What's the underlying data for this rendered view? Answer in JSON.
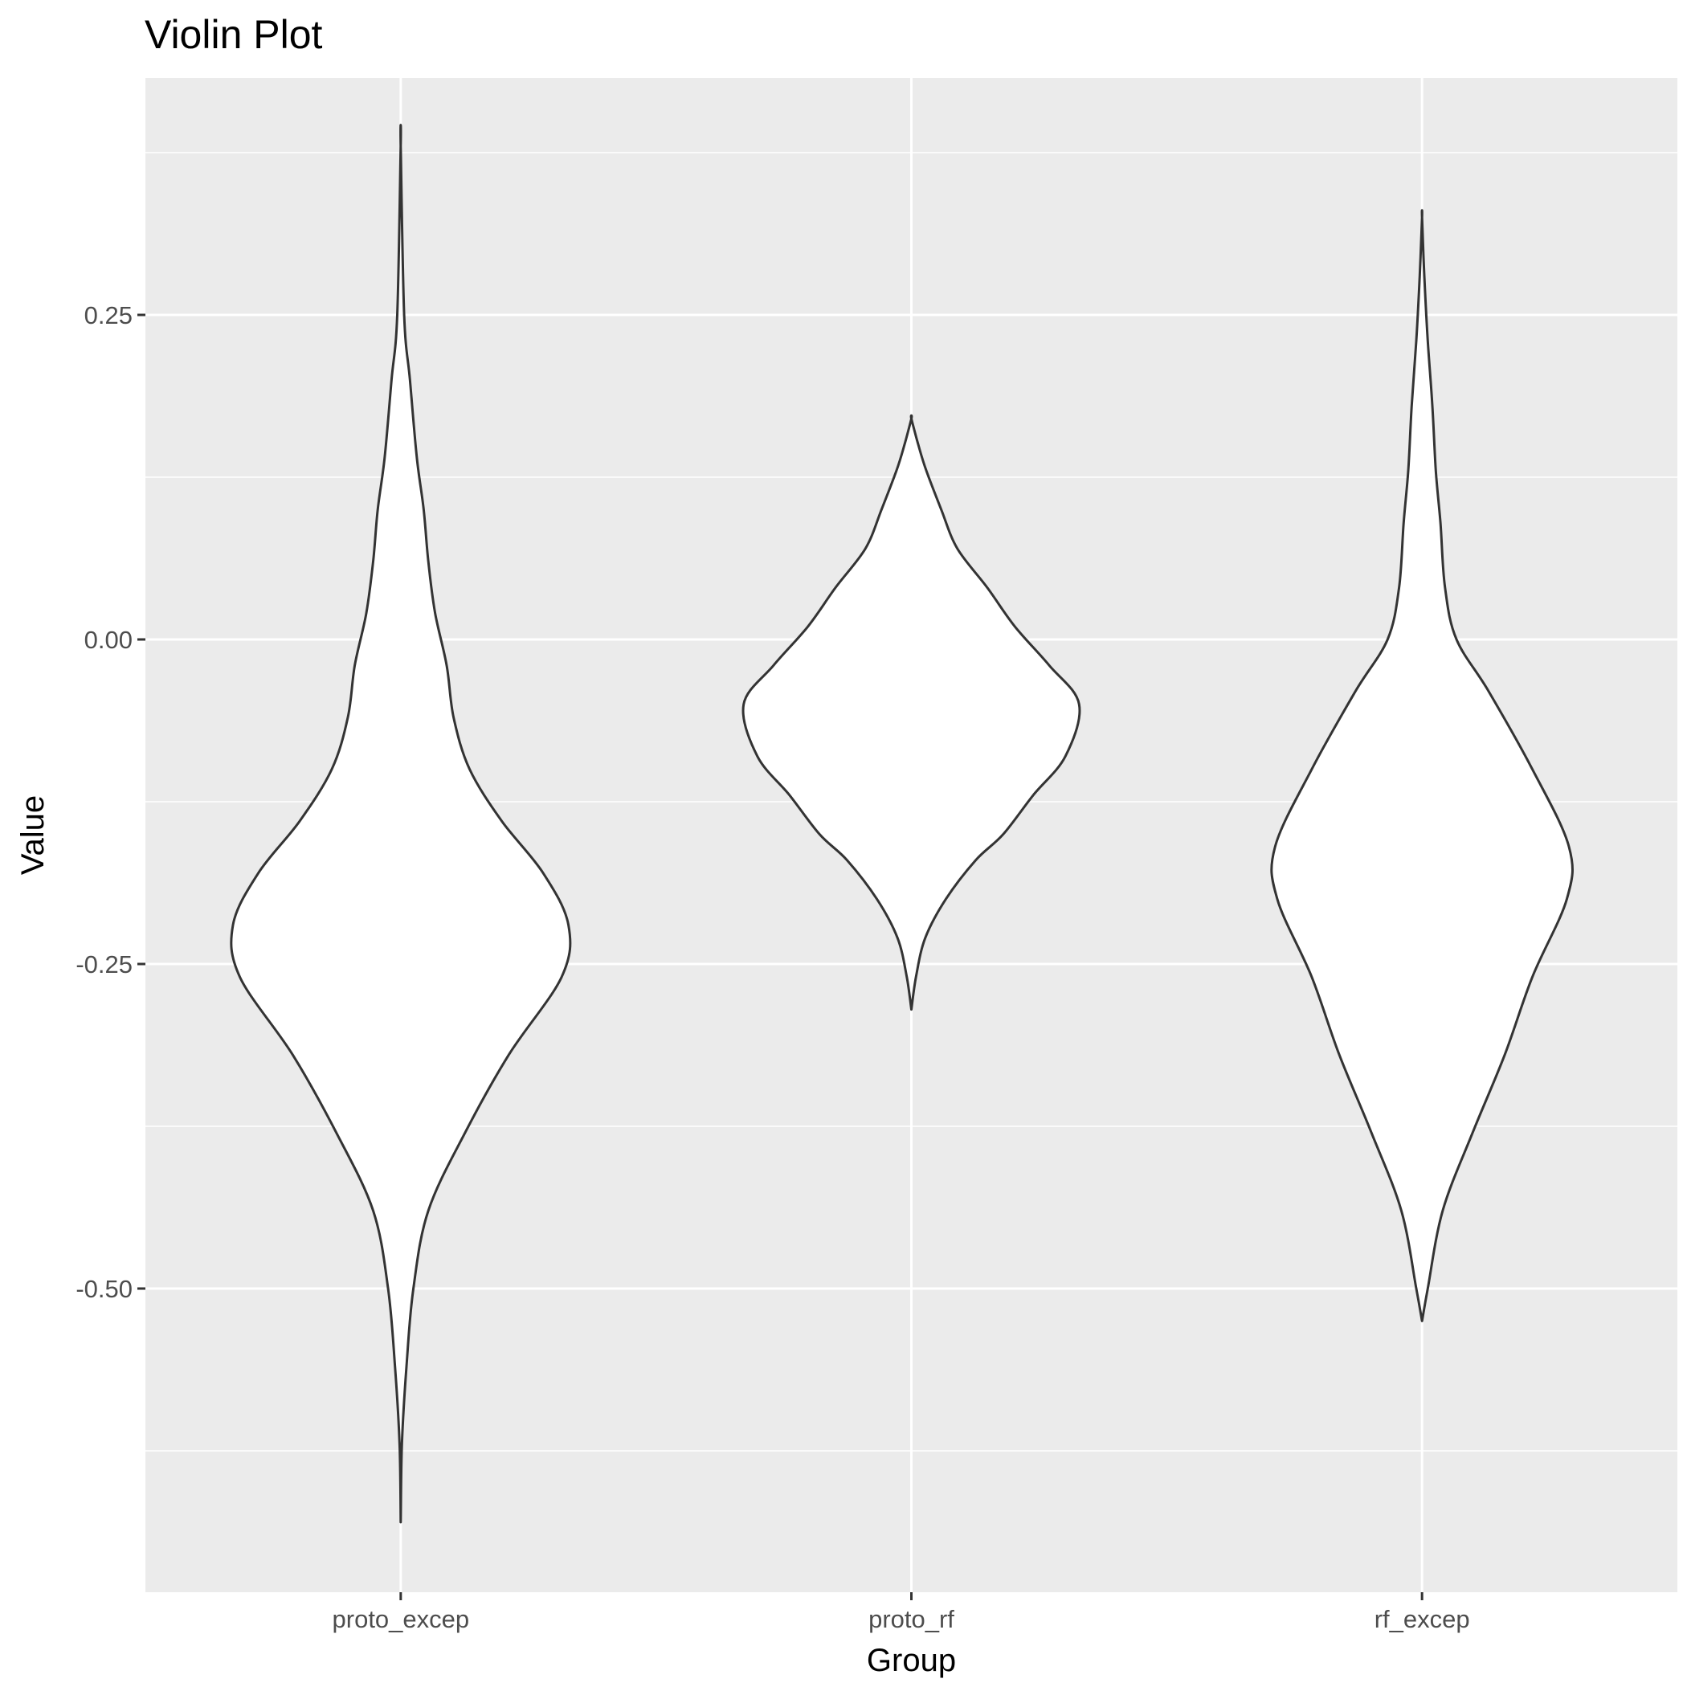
{
  "chart_data": {
    "type": "violin",
    "title": "Violin Plot",
    "xlabel": "Group",
    "ylabel": "Value",
    "categories": [
      "proto_excep",
      "proto_rf",
      "rf_excep"
    ],
    "ylim": [
      -0.73,
      0.43
    ],
    "yticks": [
      0.25,
      0.0,
      -0.25,
      -0.5
    ],
    "ytick_labels": [
      "0.25",
      "0.00",
      "-0.25",
      "-0.50"
    ],
    "grid": true,
    "panel_background": "#ebebeb",
    "violin_fill": "#ffffff",
    "violin_outline": "#333333",
    "violins": [
      {
        "group": "proto_excep",
        "min": -0.68,
        "max": 0.38,
        "density_profile": [
          [
            -0.68,
            0.0
          ],
          [
            -0.62,
            0.005
          ],
          [
            -0.56,
            0.025
          ],
          [
            -0.5,
            0.055
          ],
          [
            -0.44,
            0.12
          ],
          [
            -0.38,
            0.28
          ],
          [
            -0.32,
            0.47
          ],
          [
            -0.26,
            0.7
          ],
          [
            -0.22,
            0.73
          ],
          [
            -0.18,
            0.62
          ],
          [
            -0.14,
            0.44
          ],
          [
            -0.1,
            0.3
          ],
          [
            -0.06,
            0.23
          ],
          [
            -0.02,
            0.2
          ],
          [
            0.02,
            0.15
          ],
          [
            0.06,
            0.12
          ],
          [
            0.1,
            0.1
          ],
          [
            0.14,
            0.07
          ],
          [
            0.2,
            0.04
          ],
          [
            0.25,
            0.015
          ],
          [
            0.38,
            0.0
          ]
        ]
      },
      {
        "group": "proto_rf",
        "min": -0.285,
        "max": 0.17,
        "density_profile": [
          [
            -0.285,
            0.0
          ],
          [
            -0.26,
            0.02
          ],
          [
            -0.23,
            0.06
          ],
          [
            -0.2,
            0.15
          ],
          [
            -0.17,
            0.28
          ],
          [
            -0.15,
            0.4
          ],
          [
            -0.12,
            0.53
          ],
          [
            -0.09,
            0.67
          ],
          [
            -0.05,
            0.73
          ],
          [
            -0.02,
            0.6
          ],
          [
            0.01,
            0.45
          ],
          [
            0.04,
            0.33
          ],
          [
            0.07,
            0.2
          ],
          [
            0.1,
            0.13
          ],
          [
            0.13,
            0.065
          ],
          [
            0.15,
            0.03
          ],
          [
            0.17,
            0.0
          ]
        ]
      },
      {
        "group": "rf_excep",
        "min": -0.525,
        "max": 0.325,
        "density_profile": [
          [
            -0.525,
            0.0
          ],
          [
            -0.5,
            0.025
          ],
          [
            -0.44,
            0.09
          ],
          [
            -0.38,
            0.22
          ],
          [
            -0.32,
            0.36
          ],
          [
            -0.26,
            0.48
          ],
          [
            -0.2,
            0.63
          ],
          [
            -0.16,
            0.64
          ],
          [
            -0.1,
            0.48
          ],
          [
            -0.04,
            0.29
          ],
          [
            0.0,
            0.15
          ],
          [
            0.04,
            0.1
          ],
          [
            0.09,
            0.08
          ],
          [
            0.13,
            0.06
          ],
          [
            0.18,
            0.045
          ],
          [
            0.23,
            0.025
          ],
          [
            0.28,
            0.01
          ],
          [
            0.325,
            0.0
          ]
        ]
      }
    ]
  }
}
